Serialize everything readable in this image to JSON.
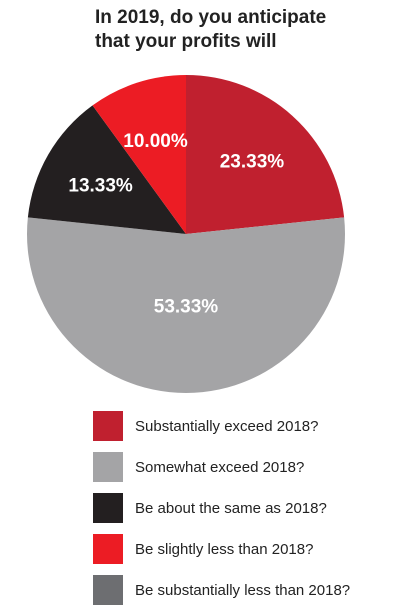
{
  "chart_data": {
    "type": "pie",
    "title_lines": [
      "In 2019, do you anticipate",
      "that your profits will"
    ],
    "categories": [
      "Substantially exceed 2018?",
      "Somewhat exceed 2018?",
      "Be about the same as 2018?",
      "Be slightly less than 2018?",
      "Be substantially less than 2018?"
    ],
    "values": [
      23.33,
      53.33,
      13.33,
      10.0,
      0
    ],
    "value_labels": [
      "23.33%",
      "53.33%",
      "13.33%",
      "10.00%",
      ""
    ],
    "colors": [
      "#c0202f",
      "#a4a4a6",
      "#231f20",
      "#ec1c24",
      "#6d6e71"
    ],
    "legend_position": "bottom"
  }
}
